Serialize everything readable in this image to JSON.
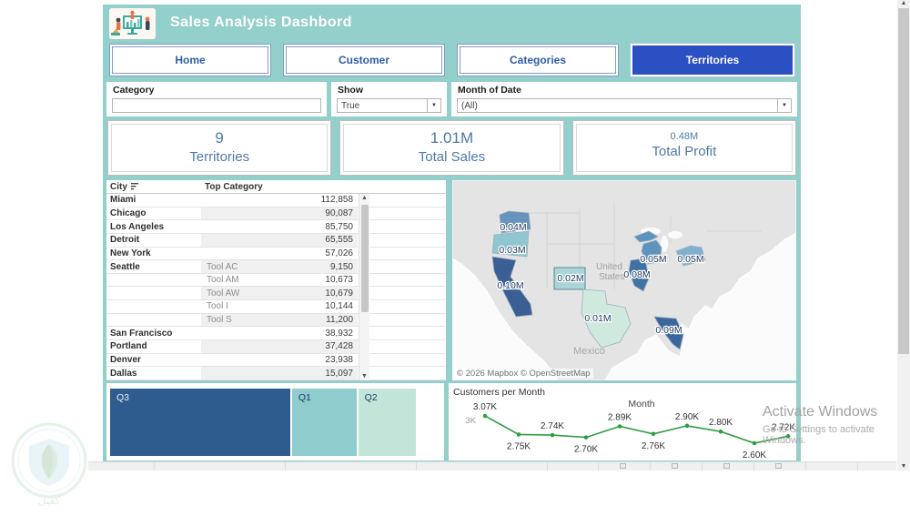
{
  "header": {
    "title": "Sales Analysis Dashbord",
    "logo": "analytics-people-illustration"
  },
  "nav": {
    "tabs": [
      {
        "label": "Home",
        "active": false
      },
      {
        "label": "Customer",
        "active": false
      },
      {
        "label": "Categories",
        "active": false
      },
      {
        "label": "Territories",
        "active": true
      }
    ]
  },
  "filters": {
    "category": {
      "label": "Category",
      "value": "",
      "type": "text"
    },
    "show": {
      "label": "Show",
      "value": "True",
      "type": "dropdown"
    },
    "month_of_date": {
      "label": "Month of Date",
      "value": "(All)",
      "type": "dropdown"
    }
  },
  "kpis": [
    {
      "value": "9",
      "label": "Territories"
    },
    {
      "value": "1.01M",
      "label": "Total Sales"
    },
    {
      "value": "0.48M",
      "label": "Total Profit"
    }
  ],
  "city_table": {
    "columns": {
      "city": "City",
      "top_category": "Top Category",
      "value": ""
    },
    "rows": [
      {
        "city": "Miami",
        "category": "",
        "value": "112,858"
      },
      {
        "city": "Chicago",
        "category": "",
        "value": "90,087"
      },
      {
        "city": "Los Angeles",
        "category": "",
        "value": "85,750"
      },
      {
        "city": "Detroit",
        "category": "",
        "value": "65,555"
      },
      {
        "city": "New York",
        "category": "",
        "value": "57,026"
      },
      {
        "city": "Seattle",
        "category": "Tool AC",
        "value": "9,150"
      },
      {
        "city": "",
        "category": "Tool AM",
        "value": "10,673"
      },
      {
        "city": "",
        "category": "Tool AW",
        "value": "10,679"
      },
      {
        "city": "",
        "category": "Tool I",
        "value": "10,144"
      },
      {
        "city": "",
        "category": "Tool S",
        "value": "11,200"
      },
      {
        "city": "San Francisco",
        "category": "",
        "value": "38,932"
      },
      {
        "city": "Portland",
        "category": "",
        "value": "37,428"
      },
      {
        "city": "Denver",
        "category": "",
        "value": "23,938"
      },
      {
        "city": "Dallas",
        "category": "",
        "value": "15,097"
      }
    ]
  },
  "chart_data": [
    {
      "type": "heatmap",
      "subtype": "choropleth-map",
      "title": "",
      "states": [
        {
          "state": "Washington",
          "label": "0.04M",
          "value": 0.04,
          "color": "#6694bc"
        },
        {
          "state": "Oregon",
          "label": "0.03M",
          "value": 0.03,
          "color": "#8fc6cf"
        },
        {
          "state": "California",
          "label": "0.10M",
          "value": 0.1,
          "color": "#3a5f94"
        },
        {
          "state": "Colorado",
          "label": "0.02M",
          "value": 0.02,
          "color": "#a9d4d8"
        },
        {
          "state": "Texas",
          "label": "0.01M",
          "value": 0.01,
          "color": "#cfe9df"
        },
        {
          "state": "Illinois",
          "label": "0.08M",
          "value": 0.08,
          "color": "#4272a4"
        },
        {
          "state": "Michigan",
          "label": "0.05M",
          "value": 0.05,
          "color": "#5e93bd"
        },
        {
          "state": "New York",
          "label": "0.05M",
          "value": 0.05,
          "color": "#7fb0cf"
        },
        {
          "state": "Florida",
          "label": "0.09M",
          "value": 0.09,
          "color": "#3a689e"
        }
      ],
      "geo_labels": {
        "country1": "United States",
        "country2": "Mexico"
      },
      "attribution": "© 2026 Mapbox © OpenStreetMap"
    },
    {
      "type": "bar",
      "subtype": "treemap-strip",
      "segments": [
        {
          "label": "Q3",
          "share": 0.545,
          "color": "#2e5c8f",
          "text_color": "#e9f0f7"
        },
        {
          "label": "Q1",
          "share": 0.195,
          "color": "#8fccce",
          "text_color": "#1f3a5f"
        },
        {
          "label": "Q2",
          "share": 0.175,
          "color": "#c3e5d9",
          "text_color": "#1f3a5f"
        }
      ]
    },
    {
      "type": "line",
      "title": "Customers per Month",
      "xlabel": "Month",
      "ylabel": "",
      "ytick": "3K",
      "ytick_value": 3000,
      "line_color": "#2f9e44",
      "points": [
        {
          "label": "3.07K",
          "value": 3070
        },
        {
          "label": "2.75K",
          "value": 2750
        },
        {
          "label": "2.74K",
          "value": 2740
        },
        {
          "label": "2.70K",
          "value": 2700
        },
        {
          "label": "2.89K",
          "value": 2890
        },
        {
          "label": "2.76K",
          "value": 2760
        },
        {
          "label": "2.90K",
          "value": 2900
        },
        {
          "label": "2.80K",
          "value": 2800
        },
        {
          "label": "2.60K",
          "value": 2600
        },
        {
          "label": "2.72K",
          "value": 2720
        }
      ]
    }
  ],
  "watermarks": {
    "activate_line1": "Activate Windows",
    "activate_line2": "Go to Settings to activate Windows.",
    "corner_logo": "shield-leaf-logo"
  }
}
